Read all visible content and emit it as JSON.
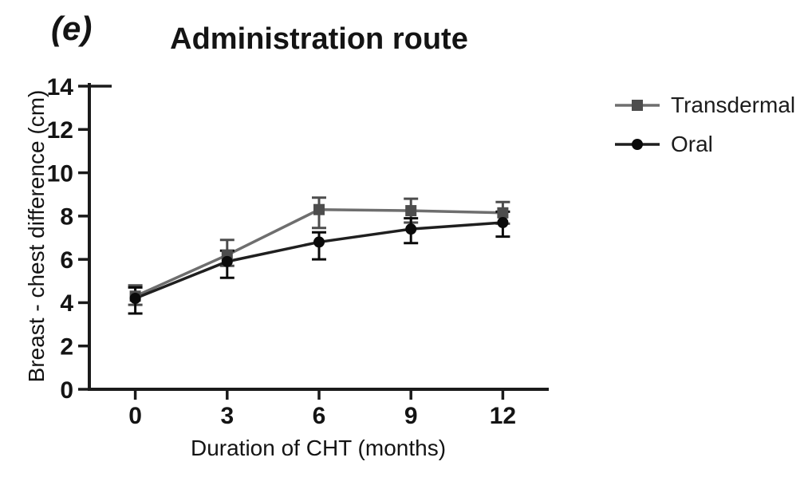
{
  "figure": {
    "panel_label": "(e)",
    "title": "Administration route"
  },
  "chart_data": {
    "type": "line",
    "title": "Administration route",
    "xlabel": "Duration of CHT (months)",
    "ylabel": "Breast - chest difference (cm)",
    "x": [
      0,
      3,
      6,
      9,
      12
    ],
    "xticks": [
      0,
      3,
      6,
      9,
      12
    ],
    "yticks": [
      0,
      2,
      4,
      6,
      8,
      10,
      12,
      14
    ],
    "xlim": [
      -1.5,
      13.5
    ],
    "ylim": [
      0,
      14
    ],
    "grid": false,
    "legend_position": "right",
    "axis_color": "#1a1a1a",
    "series": [
      {
        "name": "Transdermal",
        "marker": "square",
        "line_color": "#6e6e6e",
        "marker_color": "#4d4d4d",
        "values": [
          4.3,
          6.2,
          8.3,
          8.25,
          8.15
        ],
        "err_up": [
          0.5,
          0.7,
          0.55,
          0.55,
          0.5
        ],
        "err_down": [
          0.4,
          0.5,
          0.85,
          0.55,
          0.5
        ]
      },
      {
        "name": "Oral",
        "marker": "circle",
        "line_color": "#1f1f1f",
        "marker_color": "#0a0a0a",
        "values": [
          4.2,
          5.9,
          6.8,
          7.4,
          7.7
        ],
        "err_up": [
          0.5,
          0.5,
          0.45,
          0.5,
          0.5
        ],
        "err_down": [
          0.7,
          0.75,
          0.8,
          0.65,
          0.65
        ]
      }
    ]
  }
}
